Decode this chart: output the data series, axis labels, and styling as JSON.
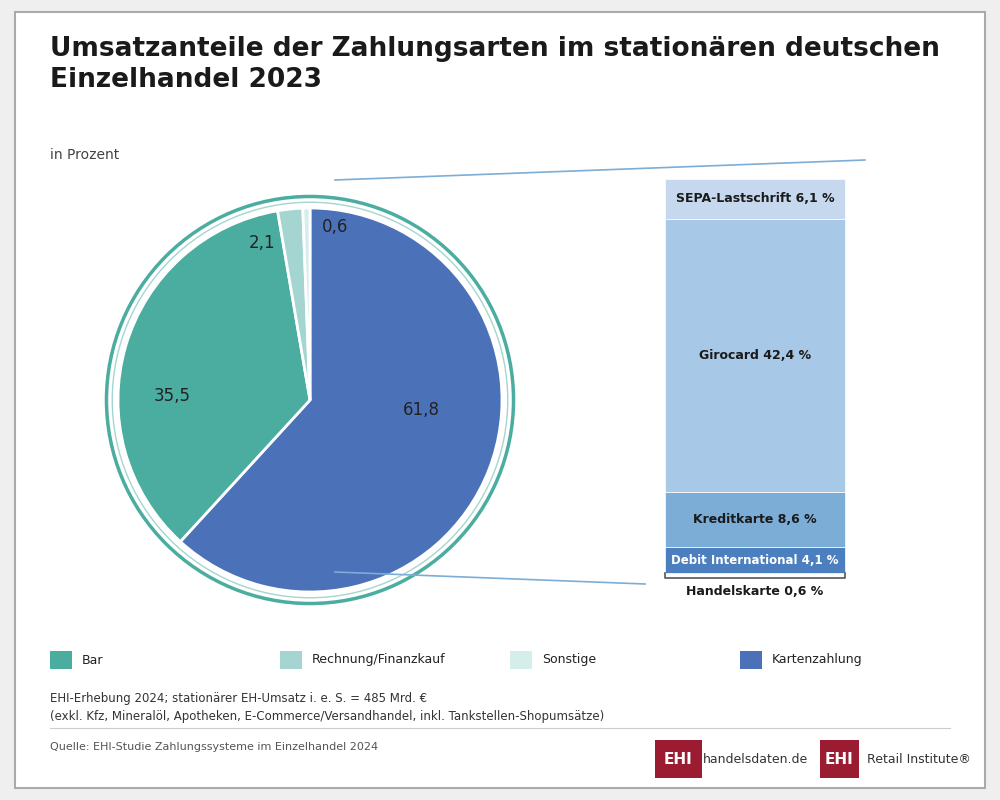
{
  "title": "Umsatzanteile der Zahlungsarten im stationären deutschen\nEinzelhandel 2023",
  "subtitle": "in Prozent",
  "pie_values": [
    61.8,
    35.5,
    2.1,
    0.6
  ],
  "pie_labels": [
    "61,8",
    "35,5",
    "2,1",
    "0,6"
  ],
  "pie_colors": [
    "#4B72B8",
    "#4AADA0",
    "#A5D5D0",
    "#D5EEEA"
  ],
  "pie_legend_labels": [
    "Bar",
    "Rechnung/Finanzkauf",
    "Sonstige",
    "Kartenzahlung"
  ],
  "pie_legend_colors": [
    "#4AADA0",
    "#A5D5D0",
    "#D5EEEA",
    "#4B72B8"
  ],
  "bar_labels_inside": [
    "SEPA-Lastschrift 6,1 %",
    "Girocard 42,4 %",
    "Kreditkarte 8,6 %",
    "Debit International 4,1 %"
  ],
  "bar_label_below": "Handelskarte 0,6 %",
  "bar_values_inside": [
    6.1,
    42.4,
    8.6,
    4.1
  ],
  "bar_colors_inside": [
    "#C5D8EE",
    "#A8C8E8",
    "#7BADD6",
    "#4B7FC0"
  ],
  "footnote1": "EHI-Erhebung 2024; stationärer EH-Umsatz i. e. S. = 485 Mrd. €",
  "footnote2": "(exkl. Kfz, Mineralöl, Apotheken, E-Commerce/Versandhandel, inkl. Tankstellen-Shopumsätze)",
  "source": "Quelle: EHI-Studie Zahlungssysteme im Einzelhandel 2024",
  "bg_color": "#EFEFEF",
  "inner_bg": "#FFFFFF",
  "border_color": "#AAAAAA",
  "circle_color": "#4AADA0"
}
